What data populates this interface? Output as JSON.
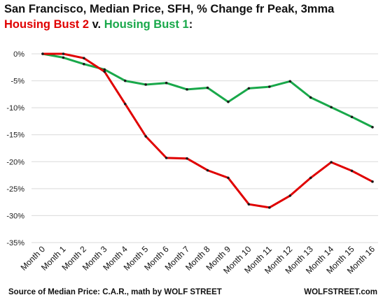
{
  "title": "San Francisco, Median Price, SFH, % Change fr Peak, 3mma",
  "subtitle": {
    "series2": "Housing  Bust 2",
    "connector": " v. ",
    "series1": "Housing  Bust 1",
    "end": ":"
  },
  "source": "Source of Median Price: C.A.R., math by WOLF STREET",
  "brand": "WOLFSTREET.com",
  "chart_data": {
    "type": "line",
    "x": [
      "Month 0",
      "Month 1",
      "Month 2",
      "Month 3",
      "Month 4",
      "Month 5",
      "Month 6",
      "Month 7",
      "Month 8",
      "Month 9",
      "Month 10",
      "Month 11",
      "Month 12",
      "Month 13",
      "Month 14",
      "Month 15",
      "Month 16"
    ],
    "yticks": [
      "0%",
      "-5%",
      "-10%",
      "-15%",
      "-20%",
      "-25%",
      "-30%",
      "-35%"
    ],
    "ylim": [
      -35,
      0
    ],
    "grid": true,
    "series": [
      {
        "name": "Housing  Bust 1",
        "color": "#19a84a",
        "values": [
          0,
          -0.7,
          -1.9,
          -2.9,
          -5.0,
          -5.7,
          -5.4,
          -6.6,
          -6.3,
          -8.9,
          -6.4,
          -6.1,
          -5.1,
          -8.1,
          -9.9,
          -11.7,
          -13.6
        ]
      },
      {
        "name": "Housing  Bust 2",
        "color": "#e00000",
        "values": [
          0,
          0,
          -0.8,
          -3.3,
          -9.3,
          -15.3,
          -19.3,
          -19.4,
          -21.6,
          -23.0,
          -27.9,
          -28.5,
          -26.3,
          -23.0,
          -20.1,
          -21.7,
          -23.7
        ]
      }
    ]
  }
}
